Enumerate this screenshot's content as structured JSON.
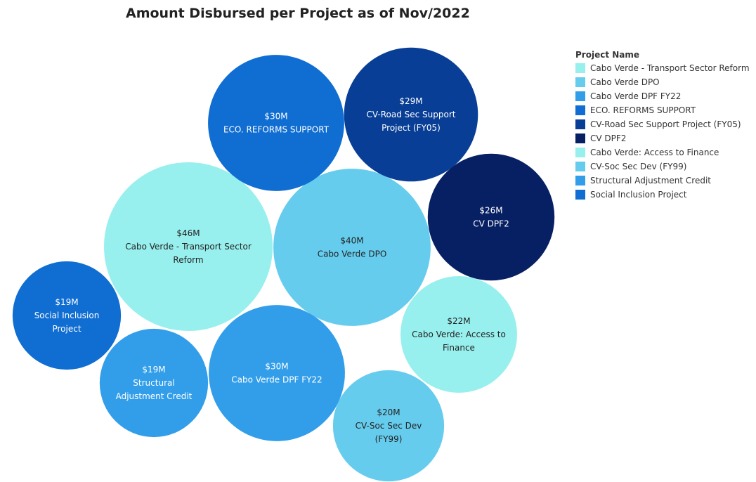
{
  "chart_data": {
    "type": "bubble",
    "title": "Amount Disbursed per Project as of Nov/2022",
    "legend_title": "Project Name",
    "legend_position": "right",
    "bubbles": [
      {
        "name": "Cabo Verde - Transport Sector Reform",
        "value_label": "$46M",
        "value": 46,
        "color": "#97f0ee",
        "label_lines": [
          "Cabo Verde - Transport Sector",
          "Reform"
        ],
        "text_color": "#222222"
      },
      {
        "name": "Cabo Verde DPO",
        "value_label": "$40M",
        "value": 40,
        "color": "#66ccee",
        "label_lines": [
          "Cabo Verde DPO"
        ],
        "text_color": "#222222"
      },
      {
        "name": "Cabo Verde DPF FY22",
        "value_label": "$30M",
        "value": 30,
        "color": "#329eea",
        "label_lines": [
          "Cabo Verde DPF FY22"
        ],
        "text_color": "#ffffff"
      },
      {
        "name": "ECO. REFORMS SUPPORT",
        "value_label": "$30M",
        "value": 30,
        "color": "#106ed2",
        "label_lines": [
          "ECO. REFORMS SUPPORT"
        ],
        "text_color": "#ffffff"
      },
      {
        "name": "CV-Road Sec Support  Project (FY05)",
        "value_label": "$29M",
        "value": 29,
        "color": "#083e96",
        "label_lines": [
          "CV-Road Sec Support",
          "Project (FY05)"
        ],
        "text_color": "#ffffff"
      },
      {
        "name": "CV DPF2",
        "value_label": "$26M",
        "value": 26,
        "color": "#071f63",
        "label_lines": [
          "CV DPF2"
        ],
        "text_color": "#ffffff"
      },
      {
        "name": "Cabo Verde: Access to Finance",
        "value_label": "$22M",
        "value": 22,
        "color": "#97f0ee",
        "label_lines": [
          "Cabo Verde: Access to",
          "Finance"
        ],
        "text_color": "#222222"
      },
      {
        "name": "CV-Soc Sec Dev (FY99)",
        "value_label": "$20M",
        "value": 20,
        "color": "#66ccee",
        "label_lines": [
          "CV-Soc Sec Dev",
          "(FY99)"
        ],
        "text_color": "#222222"
      },
      {
        "name": "Structural Adjustment Credit",
        "value_label": "$19M",
        "value": 19,
        "color": "#329eea",
        "label_lines": [
          "Structural",
          "Adjustment Credit"
        ],
        "text_color": "#ffffff"
      },
      {
        "name": "Social Inclusion Project",
        "value_label": "$19M",
        "value": 19,
        "color": "#106ed2",
        "label_lines": [
          "Social Inclusion",
          "Project"
        ],
        "text_color": "#ffffff"
      }
    ],
    "legend": [
      {
        "label": "Cabo Verde - Transport Sector Reform",
        "color": "#97f0ee"
      },
      {
        "label": "Cabo Verde DPO",
        "color": "#66ccee"
      },
      {
        "label": "Cabo Verde DPF FY22",
        "color": "#329eea"
      },
      {
        "label": "ECO. REFORMS SUPPORT",
        "color": "#106ed2"
      },
      {
        "label": "CV-Road Sec Support  Project (FY05)",
        "color": "#083e96"
      },
      {
        "label": "CV DPF2",
        "color": "#071f63"
      },
      {
        "label": "Cabo Verde: Access to Finance",
        "color": "#97f0ee"
      },
      {
        "label": "CV-Soc Sec Dev (FY99)",
        "color": "#66ccee"
      },
      {
        "label": "Structural Adjustment Credit",
        "color": "#329eea"
      },
      {
        "label": "Social Inclusion Project",
        "color": "#106ed2"
      }
    ]
  }
}
